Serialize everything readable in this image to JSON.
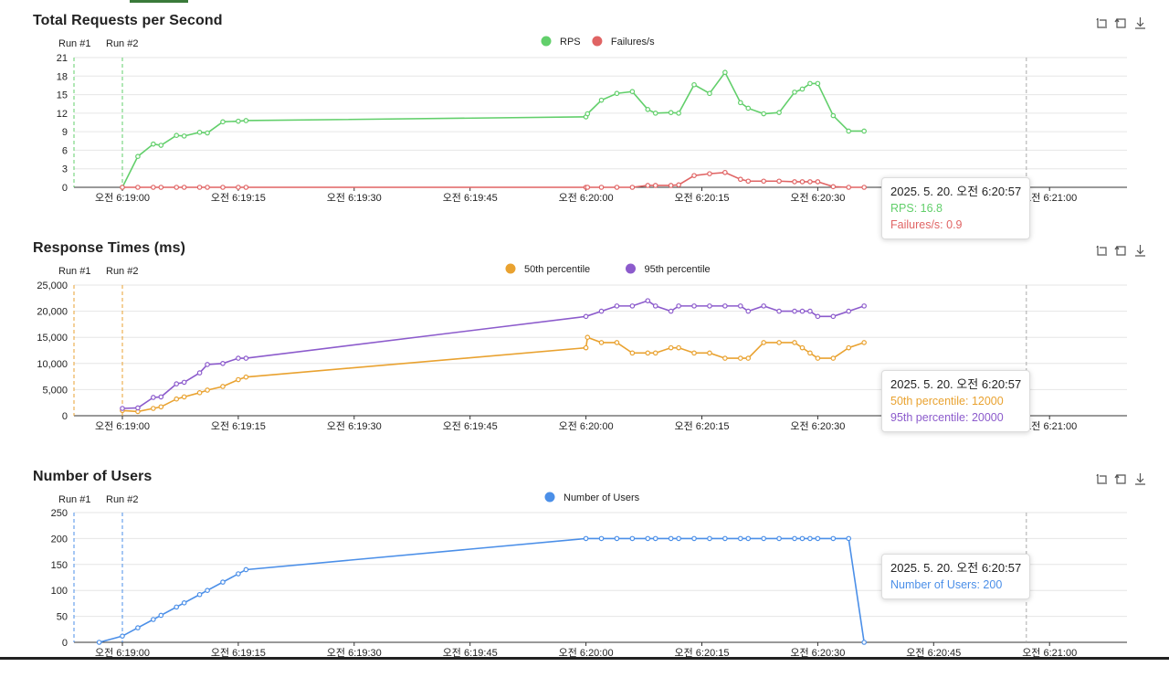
{
  "colors": {
    "rps": "#62cf6b",
    "failures": "#e06464",
    "p50": "#e9a230",
    "p95": "#8c5bcc",
    "users": "#4b8fe8",
    "grid": "#e6e6e6",
    "axis": "#333333",
    "marker": "#aaaaaa"
  },
  "toolbox_icons": [
    "zoom-icon",
    "zoom-reset-icon",
    "download-icon"
  ],
  "x_ticks": [
    "오전 6:19:00",
    "오전 6:19:15",
    "오전 6:19:30",
    "오전 6:19:45",
    "오전 6:20:00",
    "오전 6:20:15",
    "오전 6:20:30",
    "오전 6:20:45",
    "오전 6:21:00"
  ],
  "run_labels": [
    "Run #1",
    "Run #2"
  ],
  "charts": [
    {
      "id": "rps",
      "title": "Total Requests per Second",
      "legend": [
        "RPS",
        "Failures/s"
      ],
      "tooltip": {
        "time": "2025. 5. 20. 오전 6:20:57",
        "lines": [
          "RPS: 16.8",
          "Failures/s: 0.9"
        ]
      }
    },
    {
      "id": "response",
      "title": "Response Times (ms)",
      "legend": [
        "50th percentile",
        "95th percentile"
      ],
      "tooltip": {
        "time": "2025. 5. 20. 오전 6:20:57",
        "lines": [
          "50th percentile: 12000",
          "95th percentile: 20000"
        ]
      }
    },
    {
      "id": "users",
      "title": "Number of Users",
      "legend": [
        "Number of Users"
      ],
      "tooltip": {
        "time": "2025. 5. 20. 오전 6:20:57",
        "lines": [
          "Number of Users: 200"
        ]
      }
    }
  ],
  "chart_data": [
    {
      "type": "line",
      "title": "Total Requests per Second",
      "xlabel": "",
      "ylabel": "",
      "x_unit": "time",
      "x_range": [
        "06:18:57",
        "06:21:15"
      ],
      "ylim": [
        0,
        21
      ],
      "y_ticks": [
        "0",
        "3",
        "6",
        "9",
        "12",
        "15",
        "18",
        "21"
      ],
      "grid": true,
      "legend_position": "top-center",
      "run_markers": [
        {
          "label": "Run #1",
          "time": "06:18:57",
          "color": "#62cf6b"
        },
        {
          "label": "Run #2",
          "time": "06:19:00",
          "color": "#62cf6b"
        }
      ],
      "hover_time": "06:20:57",
      "series": [
        {
          "name": "RPS",
          "color": "#62cf6b",
          "points": [
            [
              "06:19:00",
              0
            ],
            [
              "06:19:02",
              5
            ],
            [
              "06:19:04",
              7
            ],
            [
              "06:19:05",
              6.8
            ],
            [
              "06:19:07",
              8.4
            ],
            [
              "06:19:08",
              8.3
            ],
            [
              "06:19:10",
              8.9
            ],
            [
              "06:19:11",
              8.8
            ],
            [
              "06:19:13",
              10.6
            ],
            [
              "06:19:15",
              10.7
            ],
            [
              "06:19:16",
              10.8
            ],
            [
              "06:20:00",
              11.4
            ],
            [
              "06:20:00.2",
              11.9
            ],
            [
              "06:20:02",
              14.1
            ],
            [
              "06:20:04",
              15.2
            ],
            [
              "06:20:06",
              15.5
            ],
            [
              "06:20:08",
              12.6
            ],
            [
              "06:20:09",
              12
            ],
            [
              "06:20:11",
              12.1
            ],
            [
              "06:20:12",
              12
            ],
            [
              "06:20:14",
              16.6
            ],
            [
              "06:20:16",
              15.2
            ],
            [
              "06:20:18",
              18.6
            ],
            [
              "06:20:20",
              13.7
            ],
            [
              "06:20:21",
              12.8
            ],
            [
              "06:20:23",
              11.9
            ],
            [
              "06:20:25",
              12.1
            ],
            [
              "06:20:27",
              15.4
            ],
            [
              "06:20:28",
              15.9
            ],
            [
              "06:20:29",
              16.8
            ],
            [
              "06:20:30",
              16.8
            ],
            [
              "06:20:32",
              11.6
            ],
            [
              "06:20:34",
              9.1
            ],
            [
              "06:20:36",
              9.1
            ]
          ]
        },
        {
          "name": "Failures/s",
          "color": "#e06464",
          "points": [
            [
              "06:19:00",
              0
            ],
            [
              "06:19:02",
              0
            ],
            [
              "06:19:04",
              0
            ],
            [
              "06:19:05",
              0
            ],
            [
              "06:19:07",
              0
            ],
            [
              "06:19:08",
              0
            ],
            [
              "06:19:10",
              0
            ],
            [
              "06:19:11",
              0
            ],
            [
              "06:19:13",
              0
            ],
            [
              "06:19:15",
              0
            ],
            [
              "06:19:16",
              0
            ],
            [
              "06:20:00",
              0
            ],
            [
              "06:20:00.2",
              0
            ],
            [
              "06:20:02",
              0
            ],
            [
              "06:20:04",
              0
            ],
            [
              "06:20:06",
              0
            ],
            [
              "06:20:08",
              0.3
            ],
            [
              "06:20:09",
              0.3
            ],
            [
              "06:20:11",
              0.3
            ],
            [
              "06:20:12",
              0.4
            ],
            [
              "06:20:14",
              1.9
            ],
            [
              "06:20:16",
              2.2
            ],
            [
              "06:20:18",
              2.4
            ],
            [
              "06:20:20",
              1.3
            ],
            [
              "06:20:21",
              1
            ],
            [
              "06:20:23",
              1
            ],
            [
              "06:20:25",
              1
            ],
            [
              "06:20:27",
              0.9
            ],
            [
              "06:20:28",
              0.9
            ],
            [
              "06:20:29",
              0.9
            ],
            [
              "06:20:30",
              0.9
            ],
            [
              "06:20:32",
              0.1
            ],
            [
              "06:20:34",
              0
            ],
            [
              "06:20:36",
              0
            ]
          ]
        }
      ]
    },
    {
      "type": "line",
      "title": "Response Times (ms)",
      "xlabel": "",
      "ylabel": "",
      "x_unit": "time",
      "x_range": [
        "06:18:57",
        "06:21:15"
      ],
      "ylim": [
        0,
        25000
      ],
      "y_ticks": [
        "0",
        "5,000",
        "10,000",
        "15,000",
        "20,000",
        "25,000"
      ],
      "grid": true,
      "legend_position": "top-center",
      "run_markers": [
        {
          "label": "Run #1",
          "time": "06:18:57",
          "color": "#e9a230"
        },
        {
          "label": "Run #2",
          "time": "06:19:00",
          "color": "#e9a230"
        }
      ],
      "hover_time": "06:20:57",
      "series": [
        {
          "name": "50th percentile",
          "color": "#e9a230",
          "points": [
            [
              "06:19:00",
              1000
            ],
            [
              "06:19:02",
              800
            ],
            [
              "06:19:04",
              1400
            ],
            [
              "06:19:05",
              1700
            ],
            [
              "06:19:07",
              3200
            ],
            [
              "06:19:08",
              3600
            ],
            [
              "06:19:10",
              4400
            ],
            [
              "06:19:11",
              4900
            ],
            [
              "06:19:13",
              5600
            ],
            [
              "06:19:15",
              6900
            ],
            [
              "06:19:16",
              7400
            ],
            [
              "06:20:00",
              13000
            ],
            [
              "06:20:00.2",
              15000
            ],
            [
              "06:20:02",
              14000
            ],
            [
              "06:20:04",
              14000
            ],
            [
              "06:20:06",
              12000
            ],
            [
              "06:20:08",
              12000
            ],
            [
              "06:20:09",
              12000
            ],
            [
              "06:20:11",
              13000
            ],
            [
              "06:20:12",
              13000
            ],
            [
              "06:20:14",
              12000
            ],
            [
              "06:20:16",
              12000
            ],
            [
              "06:20:18",
              11000
            ],
            [
              "06:20:20",
              11000
            ],
            [
              "06:20:21",
              11000
            ],
            [
              "06:20:23",
              14000
            ],
            [
              "06:20:25",
              14000
            ],
            [
              "06:20:27",
              14000
            ],
            [
              "06:20:28",
              13000
            ],
            [
              "06:20:29",
              12000
            ],
            [
              "06:20:30",
              11000
            ],
            [
              "06:20:32",
              11000
            ],
            [
              "06:20:34",
              13000
            ],
            [
              "06:20:36",
              14000
            ]
          ]
        },
        {
          "name": "95th percentile",
          "color": "#8c5bcc",
          "points": [
            [
              "06:19:00",
              1400
            ],
            [
              "06:19:02",
              1500
            ],
            [
              "06:19:04",
              3500
            ],
            [
              "06:19:05",
              3600
            ],
            [
              "06:19:07",
              6100
            ],
            [
              "06:19:08",
              6400
            ],
            [
              "06:19:10",
              8200
            ],
            [
              "06:19:11",
              9800
            ],
            [
              "06:19:13",
              10000
            ],
            [
              "06:19:15",
              11000
            ],
            [
              "06:19:16",
              11000
            ],
            [
              "06:20:00",
              19000
            ],
            [
              "06:20:02",
              20000
            ],
            [
              "06:20:04",
              21000
            ],
            [
              "06:20:06",
              21000
            ],
            [
              "06:20:08",
              22000
            ],
            [
              "06:20:09",
              21000
            ],
            [
              "06:20:11",
              20000
            ],
            [
              "06:20:12",
              21000
            ],
            [
              "06:20:14",
              21000
            ],
            [
              "06:20:16",
              21000
            ],
            [
              "06:20:18",
              21000
            ],
            [
              "06:20:20",
              21000
            ],
            [
              "06:20:21",
              20000
            ],
            [
              "06:20:23",
              21000
            ],
            [
              "06:20:25",
              20000
            ],
            [
              "06:20:27",
              20000
            ],
            [
              "06:20:28",
              20000
            ],
            [
              "06:20:29",
              20000
            ],
            [
              "06:20:30",
              19000
            ],
            [
              "06:20:32",
              19000
            ],
            [
              "06:20:34",
              20000
            ],
            [
              "06:20:36",
              21000
            ]
          ]
        }
      ]
    },
    {
      "type": "line",
      "title": "Number of Users",
      "xlabel": "",
      "ylabel": "",
      "x_unit": "time",
      "x_range": [
        "06:18:57",
        "06:21:15"
      ],
      "ylim": [
        0,
        250
      ],
      "y_ticks": [
        "0",
        "50",
        "100",
        "150",
        "200",
        "250"
      ],
      "grid": true,
      "legend_position": "top-center",
      "run_markers": [
        {
          "label": "Run #1",
          "time": "06:18:57",
          "color": "#4b8fe8"
        },
        {
          "label": "Run #2",
          "time": "06:19:00",
          "color": "#4b8fe8"
        }
      ],
      "hover_time": "06:20:57",
      "series": [
        {
          "name": "Number of Users",
          "color": "#4b8fe8",
          "points": [
            [
              "06:18:57",
              0
            ],
            [
              "06:19:00",
              12
            ],
            [
              "06:19:02",
              28
            ],
            [
              "06:19:04",
              44
            ],
            [
              "06:19:05",
              52
            ],
            [
              "06:19:07",
              68
            ],
            [
              "06:19:08",
              76
            ],
            [
              "06:19:10",
              92
            ],
            [
              "06:19:11",
              100
            ],
            [
              "06:19:13",
              116
            ],
            [
              "06:19:15",
              132
            ],
            [
              "06:19:16",
              140
            ],
            [
              "06:20:00",
              200
            ],
            [
              "06:20:02",
              200
            ],
            [
              "06:20:04",
              200
            ],
            [
              "06:20:06",
              200
            ],
            [
              "06:20:08",
              200
            ],
            [
              "06:20:09",
              200
            ],
            [
              "06:20:11",
              200
            ],
            [
              "06:20:12",
              200
            ],
            [
              "06:20:14",
              200
            ],
            [
              "06:20:16",
              200
            ],
            [
              "06:20:18",
              200
            ],
            [
              "06:20:20",
              200
            ],
            [
              "06:20:21",
              200
            ],
            [
              "06:20:23",
              200
            ],
            [
              "06:20:25",
              200
            ],
            [
              "06:20:27",
              200
            ],
            [
              "06:20:28",
              200
            ],
            [
              "06:20:29",
              200
            ],
            [
              "06:20:30",
              200
            ],
            [
              "06:20:32",
              200
            ],
            [
              "06:20:34",
              200
            ],
            [
              "06:20:36",
              0
            ]
          ]
        }
      ]
    }
  ]
}
